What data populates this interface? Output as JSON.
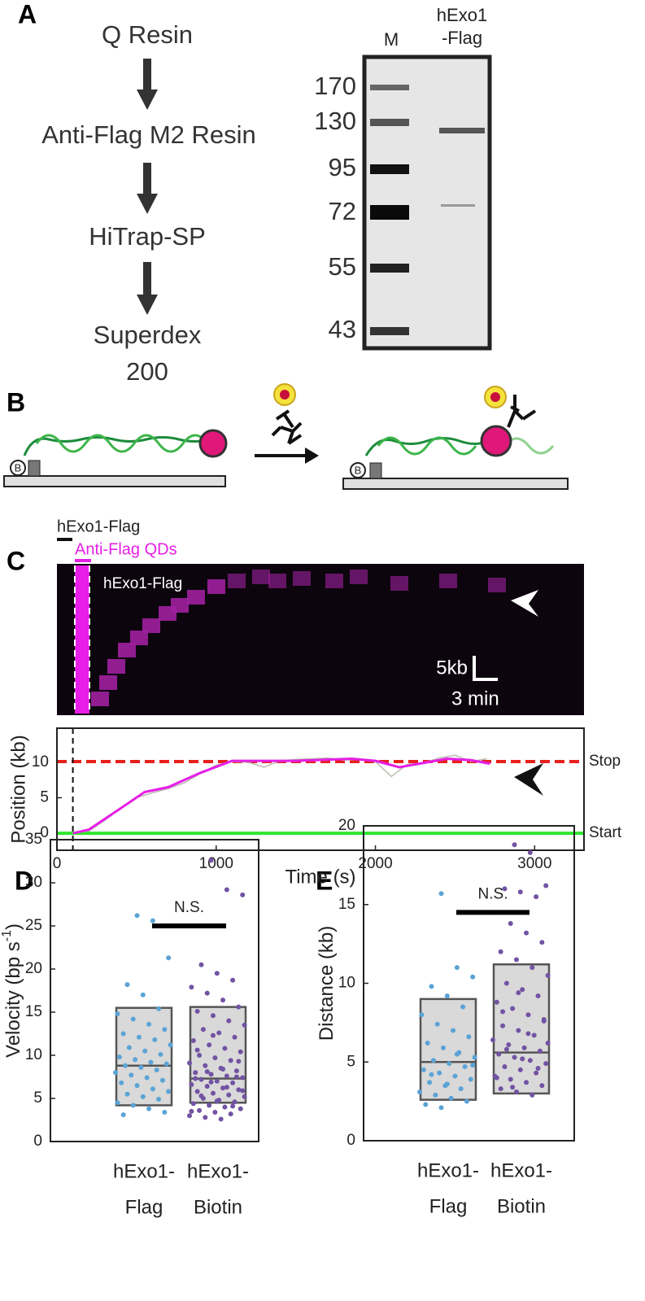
{
  "panel_letters": [
    "A",
    "B",
    "C",
    "D",
    "E"
  ],
  "panel_a": {
    "steps": [
      "Q Resin",
      "Anti-Flag M2 Resin",
      "HiTrap-SP",
      "Superdex",
      "200"
    ],
    "lanes": [
      "M",
      "hExo1",
      "-Flag"
    ],
    "markers": [
      "170",
      "130",
      "95",
      "72",
      "55",
      "43"
    ]
  },
  "panel_b": {
    "bead_label": "B"
  },
  "panel_c": {
    "label_protein": "hExo1-Flag",
    "label_qd": "Anti-Flag QDs",
    "kymo_label": "hExo1-Flag",
    "scale_kb": "5kb",
    "scale_time": "3 min"
  },
  "chart_data": [
    {
      "type": "line",
      "xlabel": "Time (s)",
      "ylabel": "Position (kb)",
      "xlim": [
        0,
        3310
      ],
      "ylim": [
        -2.4,
        14.8
      ],
      "xticks": [
        0,
        1000,
        2000,
        3000
      ],
      "yticks": [
        0,
        5,
        10
      ],
      "vline": 100,
      "reference_lines": [
        {
          "label": "Stop",
          "value": 10.1,
          "color": "#e8201c"
        },
        {
          "label": "Start",
          "value": 0,
          "color": "#2ee62e"
        }
      ],
      "series": [
        {
          "color": "#bdbab2",
          "x": [
            100,
            200,
            300,
            400,
            500,
            600,
            700,
            800,
            900,
            1000,
            1100,
            1200,
            1300,
            1400,
            1500,
            1600,
            1700,
            1800,
            1900,
            2000,
            2100,
            2200,
            2300,
            2400,
            2500,
            2600,
            2700
          ],
          "values": [
            0,
            0.3,
            1.8,
            3.6,
            5,
            5.7,
            6.3,
            7.1,
            8.4,
            9.6,
            10.1,
            10,
            9.3,
            10.2,
            10.4,
            10.5,
            10.6,
            10.3,
            10.4,
            10.1,
            8,
            9.7,
            9.9,
            10.6,
            11,
            10.1,
            10.5
          ]
        },
        {
          "color": "#e61ee6",
          "x": [
            100,
            200,
            400,
            550,
            700,
            900,
            1100,
            1500,
            1850,
            2000,
            2150,
            2300,
            2450,
            2600,
            2720
          ],
          "values": [
            0,
            0.5,
            3.5,
            5.8,
            6.5,
            8.5,
            10.2,
            10.2,
            10.5,
            10.2,
            9.3,
            9.9,
            10.5,
            10.3,
            9.8
          ]
        }
      ]
    },
    {
      "type": "box",
      "ylabel": [
        "Velocity (bp s",
        "-1",
        ")"
      ],
      "ylim": [
        0,
        35
      ],
      "yticks": [
        0,
        5,
        10,
        15,
        20,
        25,
        30,
        35
      ],
      "categories": [
        [
          "hExo1-",
          "Flag"
        ],
        [
          "hExo1-",
          "Biotin"
        ]
      ],
      "annotation": {
        "text": "N.S.",
        "value": 25
      },
      "boxes": [
        {
          "q1": 4.2,
          "median": 8.8,
          "q3": 15.5,
          "color": "#5ba3d6"
        },
        {
          "q1": 4.5,
          "median": 7.3,
          "q3": 15.6,
          "color": "#7253a3"
        }
      ],
      "points": [
        [
          26.2,
          25.6,
          21.3,
          18.2,
          17,
          15.4,
          14.8,
          14.2,
          13.6,
          13,
          12.5,
          12.1,
          11.8,
          11.2,
          10.9,
          10.5,
          10.1,
          9.8,
          9.5,
          9.2,
          9,
          8.8,
          8.6,
          8.3,
          8,
          7.7,
          7.4,
          7.1,
          6.8,
          6.5,
          6.1,
          5.8,
          5.5,
          5.2,
          4.9,
          4.5,
          4.2,
          3.8,
          3.4,
          3.1
        ],
        [
          32.6,
          29.2,
          28.6,
          20.5,
          19.5,
          18.7,
          17.9,
          17.2,
          16.4,
          15.6,
          15.1,
          14.6,
          14,
          13.5,
          13,
          12.6,
          12.1,
          11.7,
          11.2,
          10.8,
          10.4,
          10,
          9.7,
          9.4,
          9.1,
          8.8,
          8.5,
          8.2,
          8,
          7.8,
          7.6,
          7.4,
          7.2,
          7,
          6.8,
          6.6,
          6.4,
          6.2,
          6,
          5.8,
          5.6,
          5.4,
          5.2,
          5,
          4.8,
          4.6,
          4.4,
          4.2,
          4,
          3.8,
          3.6,
          3.4,
          3.2,
          3,
          2.8,
          2.6,
          7.5,
          7.3,
          6.9,
          6.3,
          5.9,
          5.3,
          4.7,
          4.1,
          3.5,
          8.1,
          8.4,
          9.3,
          10.6,
          12.3
        ]
      ]
    },
    {
      "type": "box",
      "ylabel": [
        "Distance (kb)"
      ],
      "ylim": [
        0,
        20
      ],
      "yticks": [
        0,
        5,
        10,
        15,
        20
      ],
      "categories": [
        [
          "hExo1-",
          "Flag"
        ],
        [
          "hExo1-",
          "Biotin"
        ]
      ],
      "annotation": {
        "text": "N.S.",
        "value": 14.5
      },
      "boxes": [
        {
          "q1": 2.6,
          "median": 5,
          "q3": 9,
          "color": "#5ba3d6"
        },
        {
          "q1": 3,
          "median": 5.6,
          "q3": 11.2,
          "color": "#7253a3"
        }
      ],
      "points": [
        [
          15.7,
          11,
          10.4,
          9.8,
          9.2,
          8.5,
          8,
          7.4,
          7,
          6.6,
          6.2,
          5.9,
          5.6,
          5.3,
          5.1,
          4.9,
          4.7,
          4.5,
          4.3,
          4.1,
          3.9,
          3.7,
          3.5,
          3.3,
          3.1,
          2.9,
          2.7,
          2.5,
          2.3,
          2.1,
          5.5,
          4.8,
          4.2,
          3.6
        ],
        [
          18.8,
          18.3,
          16.2,
          16,
          15.8,
          15.5,
          14.5,
          13.8,
          13.2,
          12.6,
          12,
          11.5,
          11,
          10.5,
          10,
          9.6,
          9.2,
          8.8,
          8.4,
          8,
          7.6,
          7.3,
          7,
          6.7,
          6.4,
          6.1,
          5.9,
          5.7,
          5.5,
          5.3,
          5.1,
          4.9,
          4.7,
          4.5,
          4.3,
          4.1,
          3.9,
          3.7,
          3.5,
          3.3,
          3.1,
          2.9,
          6.2,
          5.8,
          5.2,
          4.6,
          4,
          3.4,
          6.8,
          7.7,
          8.2,
          9.4
        ]
      ]
    }
  ]
}
